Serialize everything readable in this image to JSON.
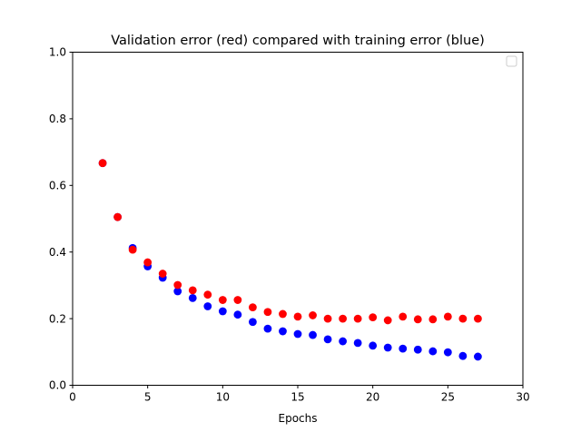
{
  "chart_data": {
    "type": "scatter",
    "title": "Validation error (red) compared with training error (blue)",
    "xlabel": "Epochs",
    "ylabel": "",
    "xlim": [
      0,
      30
    ],
    "ylim": [
      0.0,
      1.0
    ],
    "xticks": [
      "0",
      "5",
      "10",
      "15",
      "20",
      "25",
      "30"
    ],
    "yticks": [
      "0.0",
      "0.2",
      "0.4",
      "0.6",
      "0.8",
      "1.0"
    ],
    "grid": false,
    "legend": {
      "placement": "top-right",
      "entries": []
    },
    "series": [
      {
        "color": "#0000ff",
        "x": [
          2,
          3,
          4,
          5,
          6,
          7,
          8,
          9,
          10,
          11,
          12,
          13,
          14,
          15,
          16,
          17,
          18,
          19,
          20,
          21,
          22,
          23,
          24,
          25,
          26,
          27
        ],
        "y": [
          0.667,
          0.505,
          0.412,
          0.357,
          0.323,
          0.282,
          0.262,
          0.237,
          0.222,
          0.212,
          0.19,
          0.17,
          0.162,
          0.154,
          0.151,
          0.138,
          0.132,
          0.127,
          0.119,
          0.113,
          0.11,
          0.107,
          0.102,
          0.099,
          0.088,
          0.086
        ]
      },
      {
        "color": "#ff0000",
        "x": [
          2,
          3,
          4,
          5,
          6,
          7,
          8,
          9,
          10,
          11,
          12,
          13,
          14,
          15,
          16,
          17,
          18,
          19,
          20,
          21,
          22,
          23,
          24,
          25,
          26,
          27
        ],
        "y": [
          0.667,
          0.505,
          0.407,
          0.369,
          0.335,
          0.301,
          0.285,
          0.272,
          0.256,
          0.256,
          0.234,
          0.22,
          0.214,
          0.206,
          0.21,
          0.2,
          0.2,
          0.2,
          0.204,
          0.195,
          0.206,
          0.198,
          0.198,
          0.206,
          0.2,
          0.2
        ]
      }
    ]
  }
}
